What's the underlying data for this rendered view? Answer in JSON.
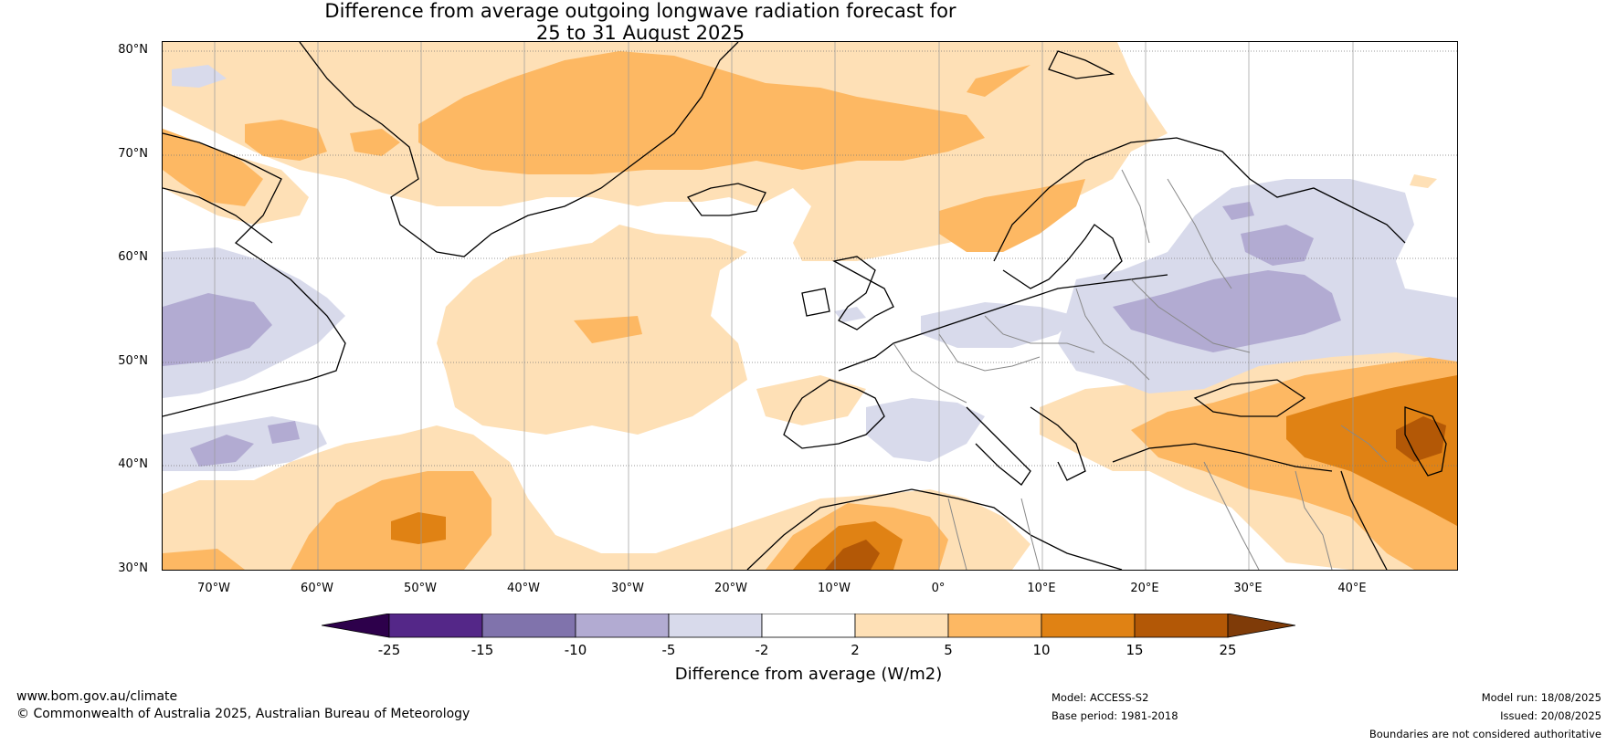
{
  "title_line1": "Difference from average outgoing longwave radiation forecast for",
  "title_line2": "25 to 31 August 2025",
  "lat_labels": [
    "80°N",
    "70°N",
    "60°N",
    "50°N",
    "40°N",
    "30°N"
  ],
  "lon_labels": [
    "70°W",
    "60°W",
    "50°W",
    "40°W",
    "30°W",
    "20°W",
    "10°W",
    "0°",
    "10°E",
    "20°E",
    "30°E",
    "40°E"
  ],
  "colorbar": {
    "title": "Difference from average (W/m2)",
    "ticks": [
      "-25",
      "-15",
      "-10",
      "-5",
      "-2",
      "2",
      "5",
      "10",
      "15",
      "25"
    ],
    "colors": [
      "#2d004b",
      "#542788",
      "#8073ac",
      "#b2abd2",
      "#d8daeb",
      "#ffffff",
      "#fee0b6",
      "#fdb863",
      "#e08214",
      "#b35806",
      "#7f3b08"
    ]
  },
  "footer": {
    "website": "www.bom.gov.au/climate",
    "copyright": "© Commonwealth of Australia 2025, Australian Bureau of Meteorology",
    "model": "Model: ACCESS-S2",
    "base_period": "Base period: 1981-2018",
    "model_run": "Model run: 18/08/2025",
    "issued": "Issued: 20/08/2025",
    "disclaimer": "Boundaries are not considered authoritative"
  }
}
